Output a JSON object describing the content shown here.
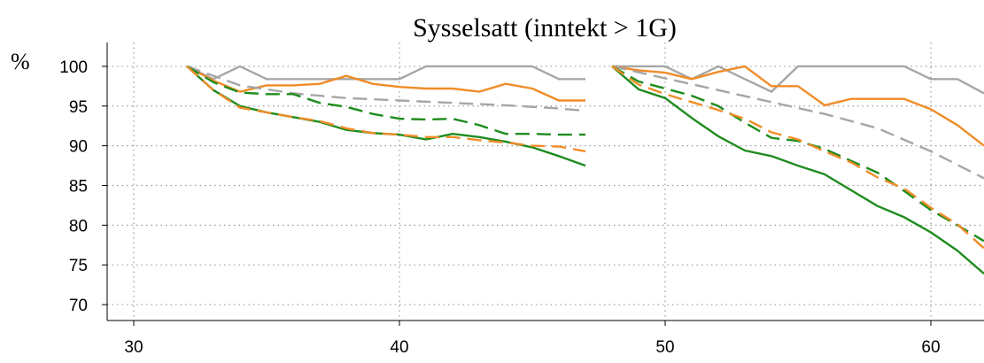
{
  "chart_data": {
    "type": "line",
    "title": "Sysselsatt (inntekt > 1G)",
    "ylabel": "%",
    "xlabel": "",
    "xlim": [
      29,
      62
    ],
    "ylim": [
      68,
      103
    ],
    "xticks": [
      30,
      40,
      50,
      60
    ],
    "yticks": [
      70,
      75,
      80,
      85,
      90,
      95,
      100
    ],
    "grid": true,
    "colors": {
      "gray": "#a6a6a6",
      "orange": "#f08c28",
      "green": "#1e8c1e"
    },
    "series": [
      {
        "color": "gray",
        "style": "solid",
        "x": [
          32,
          33,
          34,
          35,
          36,
          37,
          38,
          39,
          40,
          41,
          42,
          43,
          44,
          45,
          46,
          47
        ],
        "y": [
          100,
          98.4,
          100,
          98.4,
          98.4,
          98.4,
          98.4,
          98.4,
          98.4,
          100,
          100,
          100,
          100,
          100,
          98.4,
          98.4
        ]
      },
      {
        "color": "orange",
        "style": "solid",
        "x": [
          32,
          33,
          34,
          35,
          36,
          37,
          38,
          39,
          40,
          41,
          42,
          43,
          44,
          45,
          46,
          47
        ],
        "y": [
          100,
          98.2,
          96.8,
          97.6,
          97.6,
          97.8,
          98.8,
          97.8,
          97.4,
          97.2,
          97.2,
          96.8,
          97.8,
          97.2,
          95.7,
          95.7
        ]
      },
      {
        "color": "green",
        "style": "solid",
        "x": [
          32,
          33,
          34,
          35,
          36,
          37,
          38,
          39,
          40,
          41,
          42,
          43,
          44,
          45,
          46,
          47
        ],
        "y": [
          100,
          97,
          95,
          94.2,
          93.6,
          93,
          92,
          91.6,
          91.4,
          90.8,
          91.5,
          91.1,
          90.5,
          89.8,
          88.7,
          87.5
        ]
      },
      {
        "color": "gray",
        "style": "dashed",
        "x": [
          32,
          34,
          36,
          38,
          40,
          42,
          44,
          46,
          47
        ],
        "y": [
          100,
          97.6,
          96.6,
          96,
          95.7,
          95.4,
          95.1,
          94.7,
          94.4
        ]
      },
      {
        "color": "green",
        "style": "dashed",
        "x": [
          32,
          33,
          34,
          35,
          36,
          37,
          38,
          39,
          40,
          41,
          42,
          43,
          44,
          45,
          46,
          47
        ],
        "y": [
          100,
          98,
          96.7,
          96.5,
          96.5,
          95.4,
          94.9,
          94,
          93.4,
          93.3,
          93.4,
          92.6,
          91.5,
          91.5,
          91.4,
          91.4
        ]
      },
      {
        "color": "orange",
        "style": "dashed",
        "x": [
          32,
          33,
          34,
          35,
          36,
          37,
          38,
          39,
          40,
          41,
          42,
          43,
          44,
          45,
          46,
          47
        ],
        "y": [
          100,
          97,
          94.8,
          94.2,
          93.6,
          93.1,
          92.2,
          91.6,
          91.4,
          91.1,
          91.1,
          90.7,
          90.4,
          90,
          89.9,
          89.3
        ]
      },
      {
        "color": "gray",
        "style": "solid",
        "x": [
          48,
          49,
          50,
          51,
          52,
          53,
          54,
          55,
          56,
          57,
          58,
          59,
          60,
          61,
          62
        ],
        "y": [
          100,
          100,
          100,
          98.4,
          100,
          98.4,
          96.8,
          100,
          100,
          100,
          100,
          100,
          98.4,
          98.4,
          96.6
        ]
      },
      {
        "color": "orange",
        "style": "solid",
        "x": [
          48,
          49,
          50,
          51,
          52,
          53,
          54,
          55,
          56,
          57,
          58,
          59,
          60,
          61,
          62
        ],
        "y": [
          100,
          99.5,
          99.2,
          98.4,
          99.3,
          100,
          97.5,
          97.5,
          95.1,
          95.9,
          95.9,
          95.9,
          94.6,
          92.6,
          90
        ]
      },
      {
        "color": "green",
        "style": "solid",
        "x": [
          48,
          49,
          50,
          51,
          52,
          53,
          54,
          55,
          56,
          57,
          58,
          59,
          60,
          61,
          62
        ],
        "y": [
          100,
          97.1,
          96,
          93.5,
          91.2,
          89.4,
          88.7,
          87.5,
          86.4,
          84.4,
          82.4,
          81,
          79.1,
          76.8,
          73.9
        ]
      },
      {
        "color": "gray",
        "style": "dashed",
        "x": [
          48,
          50,
          52,
          54,
          56,
          58,
          60,
          62
        ],
        "y": [
          100,
          98.5,
          97,
          95.5,
          94,
          92.2,
          89.3,
          85.9
        ]
      },
      {
        "color": "green",
        "style": "dashed",
        "x": [
          48,
          49,
          50,
          51,
          52,
          53,
          54,
          55,
          56,
          57,
          58,
          59,
          60,
          61,
          62
        ],
        "y": [
          100,
          98.1,
          97.2,
          96.3,
          95,
          92.9,
          91,
          90.6,
          89.6,
          88.1,
          86.6,
          84.3,
          81.9,
          80,
          78
        ]
      },
      {
        "color": "orange",
        "style": "dashed",
        "x": [
          48,
          49,
          50,
          51,
          52,
          53,
          54,
          55,
          56,
          57,
          58,
          59,
          60,
          61,
          62
        ],
        "y": [
          100,
          97.7,
          96.5,
          95.5,
          94.5,
          93.4,
          91.7,
          90.8,
          89.3,
          87.9,
          86,
          84.6,
          82.2,
          80.1,
          77.1
        ]
      }
    ]
  }
}
